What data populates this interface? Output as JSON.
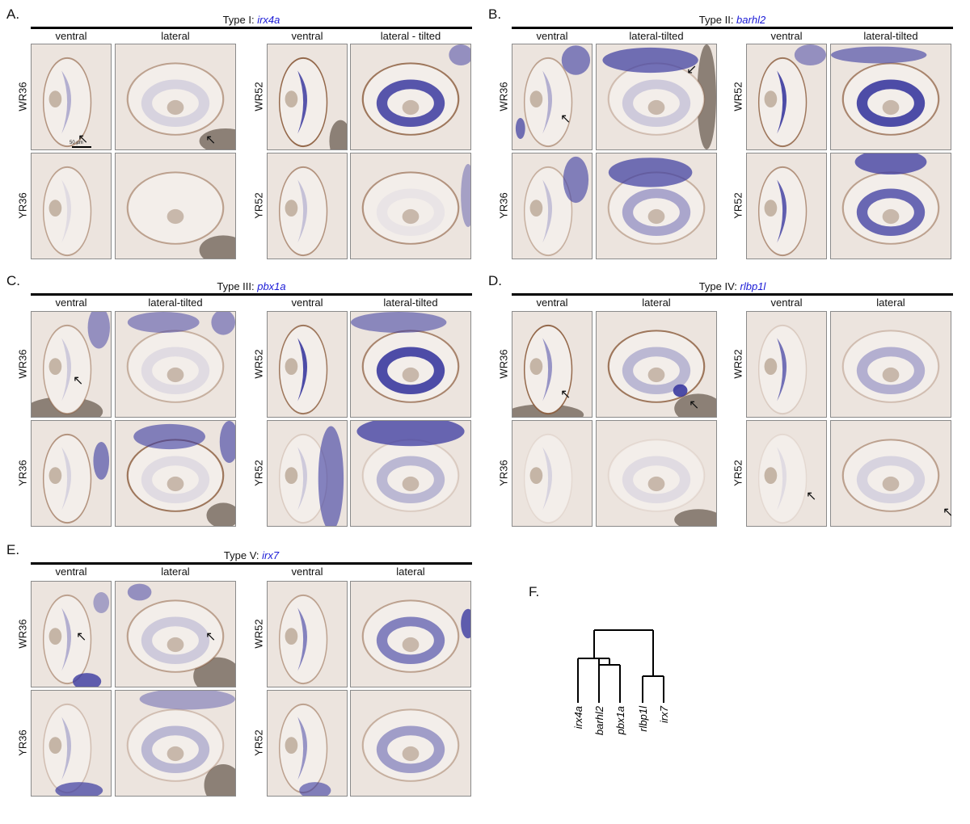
{
  "panels": [
    {
      "letter": "A.",
      "type_prefix": "Type I: ",
      "gene": "irx4a",
      "headers": [
        "ventral",
        "lateral",
        "ventral",
        "lateral - tilted"
      ],
      "rows_left": [
        "WR36",
        "YR36"
      ],
      "rows_right": [
        "WR52",
        "YR52"
      ]
    },
    {
      "letter": "B.",
      "type_prefix": "Type II: ",
      "gene": "barhl2",
      "headers": [
        "ventral",
        "lateral-tilted",
        "ventral",
        "lateral-tilted"
      ],
      "rows_left": [
        "WR36",
        "YR36"
      ],
      "rows_right": [
        "WR52",
        "YR52"
      ]
    },
    {
      "letter": "C.",
      "type_prefix": "Type III: ",
      "gene": "pbx1a",
      "headers": [
        "ventral",
        "lateral-tilted",
        "ventral",
        "lateral-tilted"
      ],
      "rows_left": [
        "WR36",
        "YR36"
      ],
      "rows_right": [
        "WR52",
        "YR52"
      ]
    },
    {
      "letter": "D.",
      "type_prefix": "Type IV: ",
      "gene": "rlbp1l",
      "headers": [
        "ventral",
        "lateral",
        "ventral",
        "lateral"
      ],
      "rows_left": [
        "WR36",
        "YR36"
      ],
      "rows_right": [
        "WR52",
        "YR52"
      ]
    },
    {
      "letter": "E.",
      "type_prefix": "Type V: ",
      "gene": "irx7",
      "headers": [
        "ventral",
        "lateral",
        "ventral",
        "lateral"
      ],
      "rows_left": [
        "WR36",
        "YR36"
      ],
      "rows_right": [
        "WR52",
        "YR52"
      ]
    }
  ],
  "scale_bar": "50 µm",
  "arrow_glyph": "↖",
  "arrow_glyph_down": "↙",
  "dendrogram": {
    "letter": "F.",
    "leaves": [
      "irx4a",
      "barhl2",
      "pbx1a",
      "rlbp1l",
      "irx7"
    ]
  },
  "colors": {
    "stain": "#3b3aa0",
    "tissue": "#ece4de",
    "rim": "#8a5a3a",
    "gene_text": "#1a1ad6"
  }
}
